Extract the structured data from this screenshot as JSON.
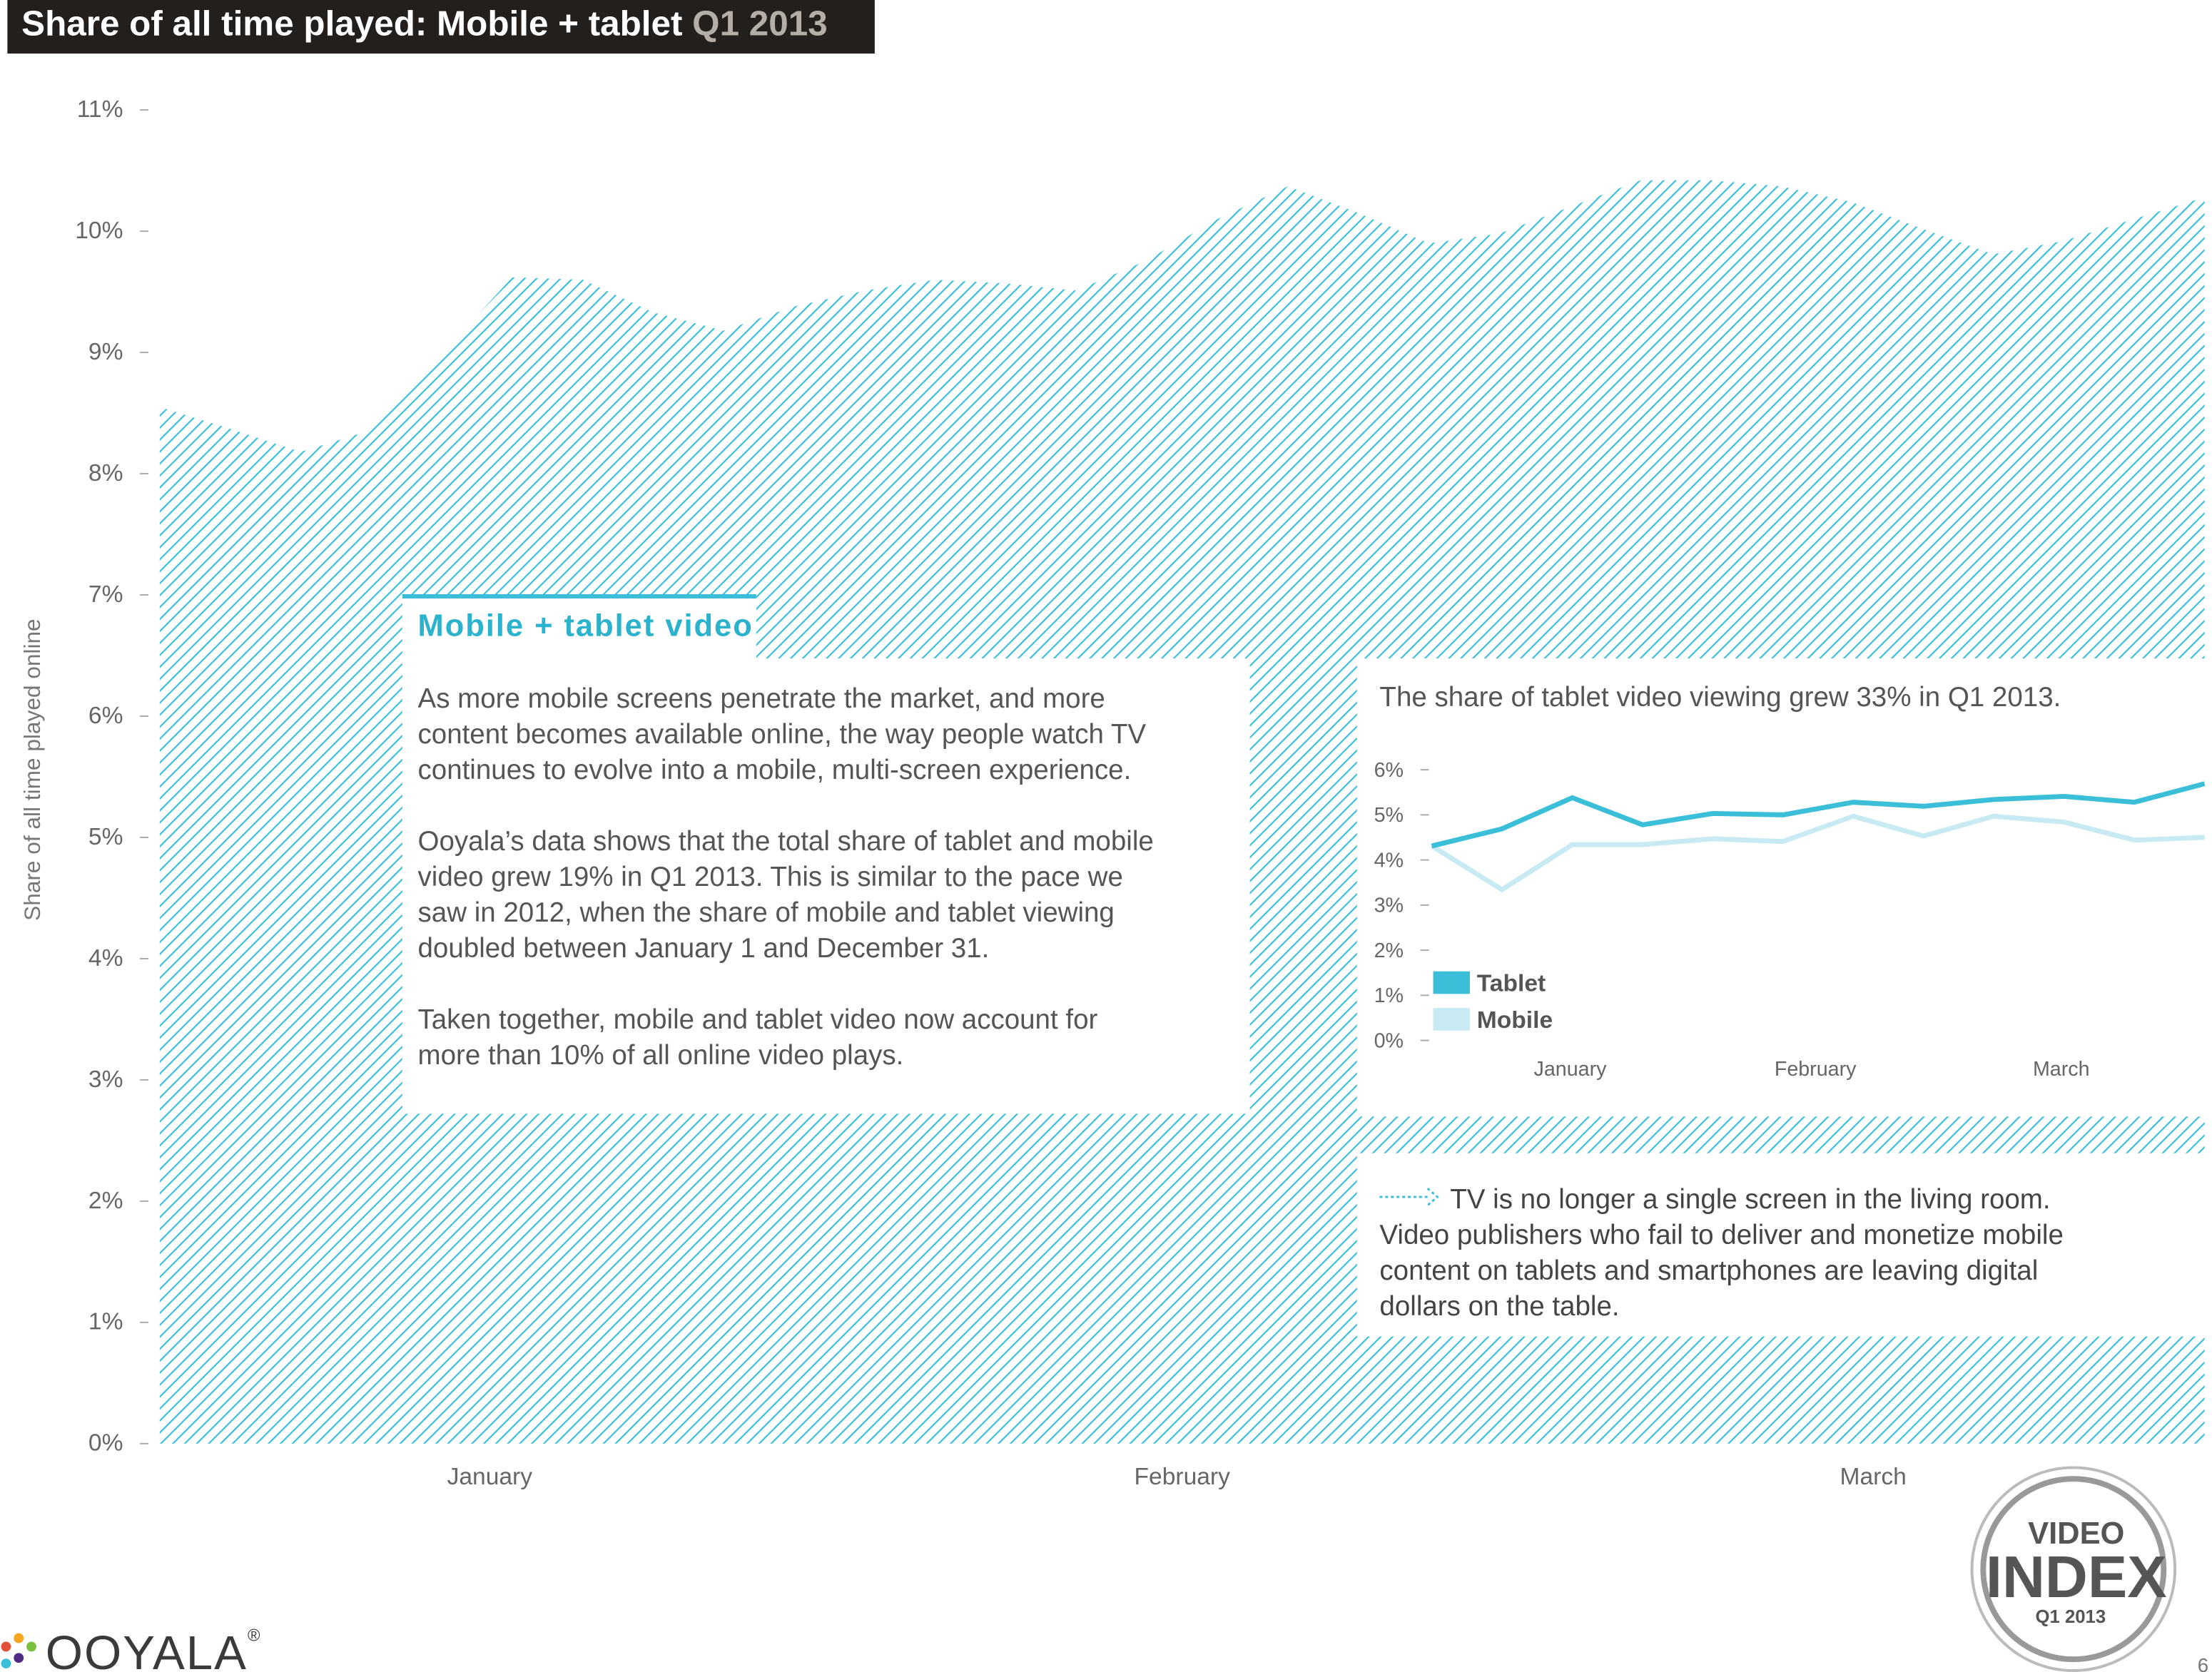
{
  "header": {
    "title": "Share of all time played: Mobile + tablet",
    "period": "Q1 2013"
  },
  "chart_data": [
    {
      "type": "area",
      "y_label": "Share of all time played online",
      "color": "#3bbfd8",
      "values": [
        8.55,
        8.37,
        8.18,
        8.36,
        8.99,
        9.62,
        9.6,
        9.33,
        9.18,
        9.38,
        9.51,
        9.6,
        9.57,
        9.51,
        9.76,
        10.1,
        10.37,
        10.15,
        9.9,
        9.98,
        10.2,
        10.42,
        10.42,
        10.37,
        10.24,
        10.02,
        9.81,
        9.92,
        10.1,
        10.28
      ],
      "xlim": [
        0,
        29
      ],
      "xticks": [
        {
          "value": 4.68,
          "label": "January"
        },
        {
          "value": 14.5,
          "label": "February"
        },
        {
          "value": 24.3,
          "label": "March"
        }
      ],
      "ylim": [
        0,
        11
      ],
      "yticks": [
        {
          "value": 0,
          "label": "0%"
        },
        {
          "value": 1,
          "label": "1%"
        },
        {
          "value": 2,
          "label": "2%"
        },
        {
          "value": 3,
          "label": "3%"
        },
        {
          "value": 4,
          "label": "4%"
        },
        {
          "value": 5,
          "label": "5%"
        },
        {
          "value": 6,
          "label": "6%"
        },
        {
          "value": 7,
          "label": "7%"
        },
        {
          "value": 8,
          "label": "8%"
        },
        {
          "value": 9,
          "label": "9%"
        },
        {
          "value": 10,
          "label": "10%"
        },
        {
          "value": 11,
          "label": "11%"
        }
      ]
    },
    {
      "type": "line",
      "title": "The share of tablet video viewing grew 33% in Q1 2013.",
      "series": [
        {
          "name": "Tablet",
          "color": "#3bbfd8",
          "values": [
            4.31,
            4.69,
            5.38,
            4.78,
            5.03,
            5.0,
            5.28,
            5.19,
            5.34,
            5.41,
            5.28,
            5.69
          ]
        },
        {
          "name": "Mobile",
          "color": "#c8eaf3",
          "values": [
            4.31,
            3.34,
            4.34,
            4.34,
            4.47,
            4.41,
            4.97,
            4.53,
            4.97,
            4.84,
            4.44,
            4.5
          ]
        }
      ],
      "xlim": [
        0,
        11
      ],
      "xticks": [
        {
          "value": 1.97,
          "label": "January"
        },
        {
          "value": 5.46,
          "label": "February"
        },
        {
          "value": 8.96,
          "label": "March"
        }
      ],
      "ylim": [
        0,
        6
      ],
      "yticks": [
        {
          "value": 0,
          "label": "0%"
        },
        {
          "value": 1,
          "label": "1%"
        },
        {
          "value": 2,
          "label": "2%"
        },
        {
          "value": 3,
          "label": "3%"
        },
        {
          "value": 4,
          "label": "4%"
        },
        {
          "value": 5,
          "label": "5%"
        },
        {
          "value": 6,
          "label": "6%"
        }
      ]
    }
  ],
  "callout": {
    "title": "Mobile + tablet video",
    "paragraphs": [
      [
        "As more mobile screens penetrate the market, and more",
        "content becomes available online, the way people watch TV",
        "continues to evolve into a mobile, multi-screen experience."
      ],
      [
        "Ooyala’s data shows that the total share of tablet and mobile",
        "video grew 19% in Q1 2013. This is similar to the pace we",
        "saw in 2012, when the share of mobile and tablet viewing",
        "doubled between January 1 and December 31."
      ],
      [
        "Taken together, mobile and tablet video now account for",
        "more than 10% of all online video plays."
      ]
    ]
  },
  "note": {
    "lines": [
      "TV is no longer a single screen in the living room.",
      "Video publishers who fail to deliver and monetize mobile",
      "content on tablets and smartphones are leaving digital",
      "dollars on the table."
    ]
  },
  "logo": {
    "name": "OOYALA",
    "mark": "®"
  },
  "badge": {
    "top": "VIDEO",
    "middle": "INDEX",
    "bottom": "Q1 2013"
  },
  "page_number": "6"
}
